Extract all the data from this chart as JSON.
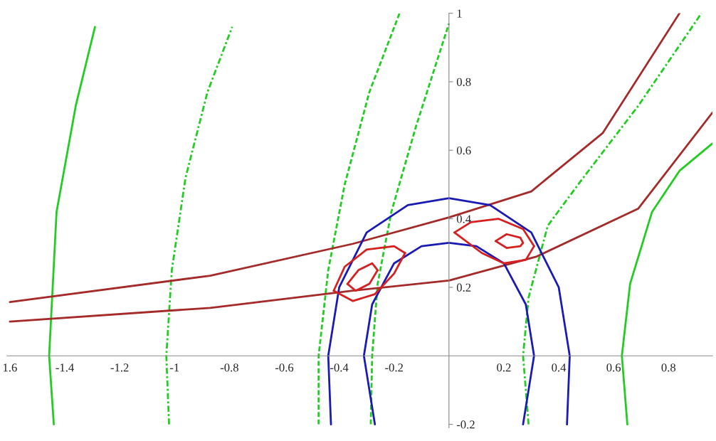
{
  "chart_data": {
    "type": "line",
    "xlim": [
      -1.61,
      0.96
    ],
    "ylim": [
      -0.21,
      1.0
    ],
    "grid": false,
    "marker": "none",
    "xticks": [
      {
        "value": -1.6,
        "label": "1.6"
      },
      -1.4,
      -1.2,
      -1,
      -0.8,
      -0.6,
      -0.4,
      -0.2,
      0.2,
      0.4,
      0.6,
      0.8
    ],
    "yticks": [
      -0.2,
      0.2,
      0.4,
      0.6,
      0.8,
      1
    ],
    "series": [
      {
        "color": "#22cc22",
        "line_style": "solid",
        "x": [
          -1.44,
          -1.457,
          -1.43,
          -1.36,
          -1.29
        ],
        "values": [
          -0.2,
          0,
          0.42,
          0.73,
          0.96
        ]
      },
      {
        "color": "#22cc22",
        "line_style": "solid",
        "x": [
          0.65,
          0.63,
          0.66,
          0.74,
          0.84,
          0.96
        ],
        "values": [
          -0.2,
          0,
          0.21,
          0.42,
          0.54,
          0.62
        ]
      },
      {
        "color": "#22cc22",
        "line_style": "dashdot",
        "x": [
          -1.02,
          -1.03,
          -1.01,
          -0.96,
          -0.88,
          -0.79
        ],
        "values": [
          -0.2,
          0,
          0.25,
          0.52,
          0.77,
          0.96
        ]
      },
      {
        "color": "#22cc22",
        "line_style": "dashed",
        "x": [
          -0.475,
          -0.475,
          -0.44,
          -0.38,
          -0.29,
          -0.18
        ],
        "values": [
          -0.2,
          0,
          0.25,
          0.5,
          0.77,
          1.0
        ]
      },
      {
        "color": "#22cc22",
        "line_style": "dashed",
        "x": [
          -0.285,
          -0.28,
          -0.26,
          -0.21,
          -0.12,
          0.0
        ],
        "values": [
          -0.2,
          0,
          0.21,
          0.42,
          0.67,
          0.97
        ]
      },
      {
        "color": "#22cc22",
        "line_style": "dashdot",
        "x": [
          0.29,
          0.27,
          0.29,
          0.36,
          0.48,
          0.69,
          0.92
        ],
        "values": [
          -0.2,
          0,
          0.17,
          0.38,
          0.51,
          0.73,
          1.0
        ]
      },
      {
        "color": "#a52a2a",
        "line_style": "solid",
        "x": [
          -1.6,
          -0.87,
          -0.35,
          0,
          0.3,
          0.56,
          0.84
        ],
        "values": [
          0.157,
          0.234,
          0.327,
          0.404,
          0.48,
          0.65,
          1.0
        ]
      },
      {
        "color": "#a52a2a",
        "line_style": "solid",
        "x": [
          -1.6,
          -0.87,
          -0.35,
          0,
          0.32,
          0.69,
          0.96
        ],
        "values": [
          0.1,
          0.14,
          0.19,
          0.22,
          0.29,
          0.43,
          0.71
        ]
      },
      {
        "color": "#1a1ab4",
        "line_style": "solid",
        "x": [
          -0.43,
          -0.44,
          -0.4,
          -0.3,
          -0.15,
          0,
          0.15,
          0.3,
          0.4,
          0.44,
          0.43
        ],
        "values": [
          -0.2,
          0,
          0.2,
          0.36,
          0.44,
          0.46,
          0.44,
          0.36,
          0.2,
          0,
          -0.2
        ]
      },
      {
        "color": "#1a1ab4",
        "line_style": "solid",
        "x": [
          -0.27,
          -0.31,
          -0.28,
          -0.2,
          -0.1,
          0,
          0.1,
          0.2,
          0.28,
          0.31,
          0.27
        ],
        "values": [
          -0.2,
          0,
          0.15,
          0.27,
          0.32,
          0.33,
          0.32,
          0.27,
          0.15,
          0,
          -0.2
        ]
      },
      {
        "color": "#d62020",
        "line_style": "solid",
        "x": [
          -0.42,
          -0.38,
          -0.3,
          -0.2,
          -0.16
        ],
        "values": [
          0.19,
          0.26,
          0.31,
          0.32,
          0.3
        ]
      },
      {
        "color": "#d62020",
        "line_style": "solid",
        "x": [
          -0.42,
          -0.35,
          -0.27,
          -0.2,
          -0.16
        ],
        "values": [
          0.19,
          0.16,
          0.18,
          0.24,
          0.3
        ]
      },
      {
        "color": "#d62020",
        "line_style": "solid",
        "x": [
          -0.37,
          -0.33,
          -0.28,
          -0.26
        ],
        "values": [
          0.21,
          0.25,
          0.27,
          0.25
        ]
      },
      {
        "color": "#d62020",
        "line_style": "solid",
        "x": [
          -0.37,
          -0.34,
          -0.29,
          -0.26
        ],
        "values": [
          0.21,
          0.19,
          0.21,
          0.25
        ]
      },
      {
        "color": "#d62020",
        "line_style": "solid",
        "x": [
          0.02,
          0.08,
          0.18,
          0.27,
          0.31
        ],
        "values": [
          0.36,
          0.39,
          0.4,
          0.37,
          0.32
        ]
      },
      {
        "color": "#d62020",
        "line_style": "solid",
        "x": [
          0.02,
          0.12,
          0.2,
          0.28,
          0.31
        ],
        "values": [
          0.36,
          0.3,
          0.27,
          0.28,
          0.32
        ]
      },
      {
        "color": "#d62020",
        "line_style": "solid",
        "x": [
          0.17,
          0.21,
          0.26,
          0.27
        ],
        "values": [
          0.335,
          0.355,
          0.345,
          0.33
        ]
      },
      {
        "color": "#d62020",
        "line_style": "solid",
        "x": [
          0.17,
          0.21,
          0.26,
          0.27
        ],
        "values": [
          0.335,
          0.315,
          0.32,
          0.33
        ]
      }
    ]
  }
}
